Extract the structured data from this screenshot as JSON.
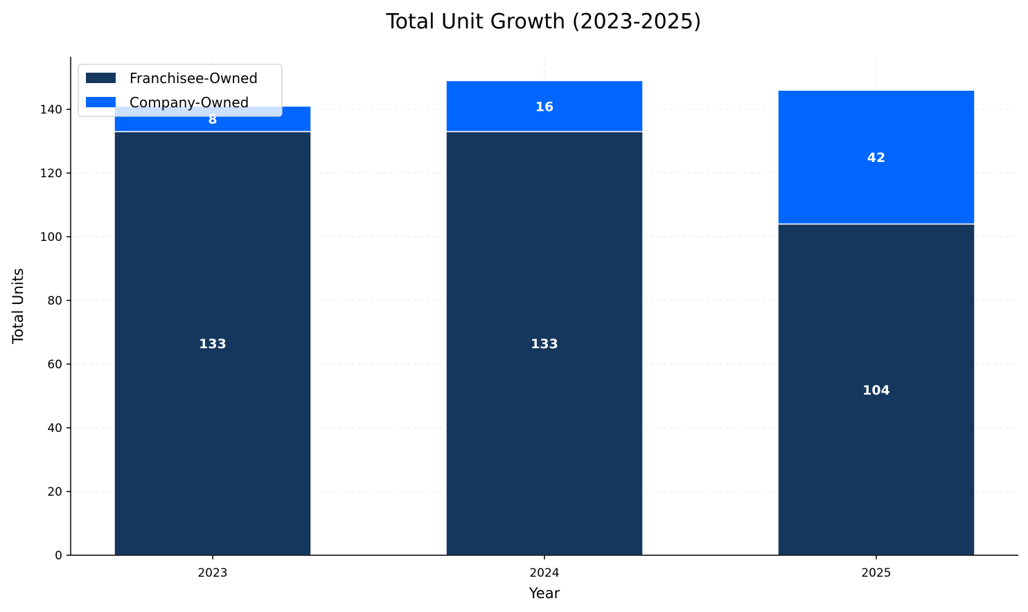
{
  "chart_data": {
    "type": "bar",
    "stacked": true,
    "title": "Total Unit Growth (2023-2025)",
    "xlabel": "Year",
    "ylabel": "Total Units",
    "categories": [
      "2023",
      "2024",
      "2025"
    ],
    "series": [
      {
        "name": "Franchisee-Owned",
        "values": [
          133,
          133,
          104
        ],
        "color": "#15375e"
      },
      {
        "name": "Company-Owned",
        "values": [
          8,
          16,
          42
        ],
        "color": "#0066ff"
      }
    ],
    "ylim": [
      0,
      156.5
    ],
    "yticks": [
      0,
      20,
      40,
      60,
      80,
      100,
      120,
      140
    ],
    "grid": true,
    "legend_position": "top-left"
  }
}
